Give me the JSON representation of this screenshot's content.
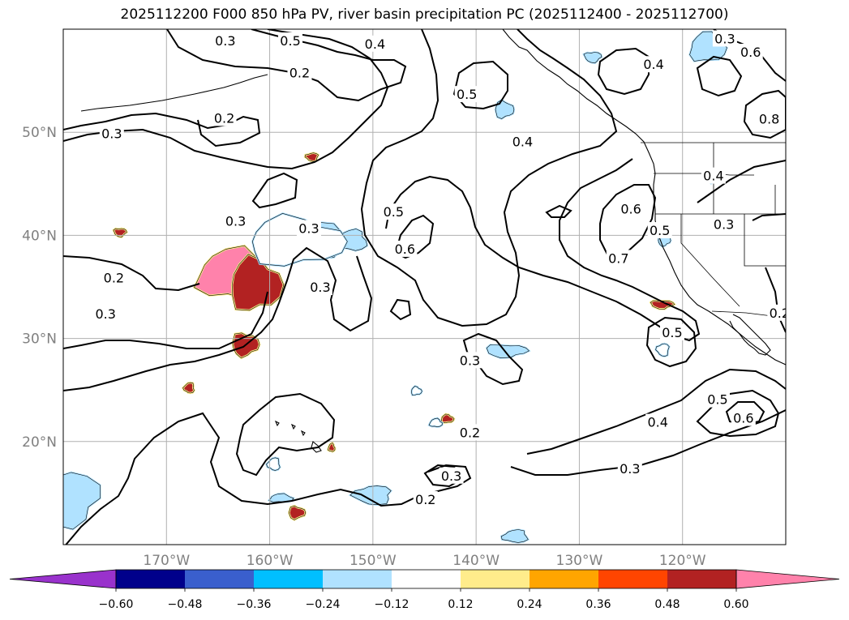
{
  "title": "2025112200 F000 850 hPa PV, river basin precipitation PC (2025112400 - 2025112700)",
  "chart_data": {
    "type": "heatmap",
    "map_extent": {
      "lon": [
        -180,
        -110
      ],
      "lat": [
        10,
        60
      ]
    },
    "x_ticks": [
      {
        "lon": -170,
        "label": "170°W"
      },
      {
        "lon": -160,
        "label": "160°W"
      },
      {
        "lon": -150,
        "label": "150°W"
      },
      {
        "lon": -140,
        "label": "140°W"
      },
      {
        "lon": -130,
        "label": "130°W"
      },
      {
        "lon": -120,
        "label": "120°W"
      }
    ],
    "y_ticks": [
      {
        "lat": 20,
        "label": "20°N"
      },
      {
        "lat": 30,
        "label": "30°N"
      },
      {
        "lat": 40,
        "label": "40°N"
      },
      {
        "lat": 50,
        "label": "50°N"
      }
    ],
    "grid": true,
    "colorbar": {
      "levels": [
        -0.72,
        -0.6,
        -0.48,
        -0.36,
        -0.24,
        -0.12,
        0.12,
        0.24,
        0.36,
        0.48,
        0.6,
        0.72
      ],
      "tick_labels": [
        "−0.60",
        "−0.48",
        "−0.36",
        "−0.24",
        "−0.12",
        "0.12",
        "0.24",
        "0.36",
        "0.48",
        "0.60"
      ],
      "colors": [
        "#9932cc",
        "#00008b",
        "#3a5fcd",
        "#00bfff",
        "#b0e2ff",
        "#ffffff",
        "#ffec8b",
        "#ffa500",
        "#ff4500",
        "#b22222",
        "#ff82ab"
      ],
      "extend": "both"
    },
    "pv_contour_labels": [
      {
        "value": "0.2",
        "lon": -164.4,
        "lat": 51.4
      },
      {
        "value": "0.3",
        "lon": -175.3,
        "lat": 49.9
      },
      {
        "value": "0.5",
        "lon": -158.0,
        "lat": 58.9
      },
      {
        "value": "0.4",
        "lon": -149.8,
        "lat": 58.6
      },
      {
        "value": "0.2",
        "lon": -157.1,
        "lat": 55.8
      },
      {
        "value": "0.5",
        "lon": -140.9,
        "lat": 53.7
      },
      {
        "value": "0.4",
        "lon": -135.5,
        "lat": 49.1
      },
      {
        "value": "0.3",
        "lon": -164.3,
        "lat": 58.9
      },
      {
        "value": "0.3",
        "lon": -163.3,
        "lat": 41.4
      },
      {
        "value": "0.5",
        "lon": -148.0,
        "lat": 42.3
      },
      {
        "value": "0.6",
        "lon": -146.9,
        "lat": 38.7
      },
      {
        "value": "0.6",
        "lon": -125.0,
        "lat": 42.6
      },
      {
        "value": "0.7",
        "lon": -126.2,
        "lat": 37.8
      },
      {
        "value": "0.5",
        "lon": -122.2,
        "lat": 40.5
      },
      {
        "value": "0.4",
        "lon": -117.0,
        "lat": 45.8
      },
      {
        "value": "0.3",
        "lon": -116.0,
        "lat": 41.1
      },
      {
        "value": "0.4",
        "lon": -122.8,
        "lat": 56.6
      },
      {
        "value": "0.3",
        "lon": -115.9,
        "lat": 59.1
      },
      {
        "value": "0.3",
        "lon": -156.2,
        "lat": 40.7
      },
      {
        "value": "0.3",
        "lon": -155.1,
        "lat": 35.0
      },
      {
        "value": "0.2",
        "lon": -175.1,
        "lat": 35.9
      },
      {
        "value": "0.3",
        "lon": -175.9,
        "lat": 32.4
      },
      {
        "value": "0.5",
        "lon": -121.0,
        "lat": 30.6
      },
      {
        "value": "0.3",
        "lon": -140.6,
        "lat": 27.9
      },
      {
        "value": "0.2",
        "lon": -140.6,
        "lat": 20.9
      },
      {
        "value": "0.3",
        "lon": -142.4,
        "lat": 16.7
      },
      {
        "value": "0.2",
        "lon": -144.9,
        "lat": 14.4
      },
      {
        "value": "0.4",
        "lon": -122.4,
        "lat": 21.9
      },
      {
        "value": "0.3",
        "lon": -125.1,
        "lat": 17.4
      },
      {
        "value": "0.5",
        "lon": -116.6,
        "lat": 24.1
      },
      {
        "value": "0.6",
        "lon": -114.1,
        "lat": 22.3
      },
      {
        "value": "0.2",
        "lon": -110.6,
        "lat": 32.5
      },
      {
        "value": "0.8",
        "lon": -111.6,
        "lat": 51.3
      },
      {
        "value": "0.6",
        "lon": -113.4,
        "lat": 57.8
      }
    ],
    "precip_pc_patches": [
      {
        "level": 0.48,
        "lon": -163.4,
        "lat": 36.2,
        "rlon": 3.6,
        "rlat": 2.4
      },
      {
        "level": 0.36,
        "lon": -161.4,
        "lat": 35.2,
        "rlon": 2.5,
        "rlat": 2.5
      },
      {
        "level": 0.36,
        "lon": -162.4,
        "lat": 29.4,
        "rlon": 1.3,
        "rlat": 1.1
      },
      {
        "level": 0.36,
        "lon": -174.5,
        "lat": 40.3,
        "rlon": 0.6,
        "rlat": 0.4
      },
      {
        "level": 0.36,
        "lon": -155.9,
        "lat": 47.6,
        "rlon": 0.6,
        "rlat": 0.4
      },
      {
        "level": 0.36,
        "lon": -167.8,
        "lat": 25.2,
        "rlon": 0.5,
        "rlat": 0.5
      },
      {
        "level": 0.36,
        "lon": -154.0,
        "lat": 19.4,
        "rlon": 0.3,
        "rlat": 0.4
      },
      {
        "level": 0.36,
        "lon": -142.8,
        "lat": 22.2,
        "rlon": 0.6,
        "rlat": 0.4
      },
      {
        "level": 0.36,
        "lon": -157.4,
        "lat": 13.1,
        "rlon": 0.8,
        "rlat": 0.6
      },
      {
        "level": 0.36,
        "lon": -122.0,
        "lat": 33.3,
        "rlon": 1.1,
        "rlat": 0.4
      },
      {
        "level": -0.48,
        "lon": -157.4,
        "lat": 39.9,
        "rlon": 2.8,
        "rlat": 1.2
      },
      {
        "level": -0.36,
        "lon": -156.6,
        "lat": 39.5,
        "rlon": 3.9,
        "rlat": 1.8
      },
      {
        "level": -0.36,
        "lon": -152.0,
        "lat": 39.5,
        "rlon": 1.4,
        "rlat": 1.0
      },
      {
        "level": -0.36,
        "lon": -117.6,
        "lat": 58.2,
        "rlon": 1.7,
        "rlat": 1.4
      },
      {
        "level": -0.36,
        "lon": -137.3,
        "lat": 52.2,
        "rlon": 0.9,
        "rlat": 0.8
      },
      {
        "level": -0.36,
        "lon": -137.1,
        "lat": 28.8,
        "rlon": 2.0,
        "rlat": 0.6
      },
      {
        "level": -0.36,
        "lon": -180.0,
        "lat": 14.5,
        "rlon": 3.5,
        "rlat": 2.6
      },
      {
        "level": -0.36,
        "lon": -150.0,
        "lat": 14.8,
        "rlon": 1.8,
        "rlat": 0.9
      },
      {
        "level": -0.36,
        "lon": -136.2,
        "lat": 10.8,
        "rlon": 1.2,
        "rlat": 0.6
      },
      {
        "level": -0.36,
        "lon": -158.9,
        "lat": 14.5,
        "rlon": 1.1,
        "rlat": 0.4
      },
      {
        "level": -0.24,
        "lon": -157.5,
        "lat": 39.4,
        "rlon": 4.6,
        "rlat": 2.3
      },
      {
        "level": -0.36,
        "lon": -121.8,
        "lat": 39.5,
        "rlon": 0.6,
        "rlat": 0.5
      },
      {
        "level": -0.36,
        "lon": -128.7,
        "lat": 57.3,
        "rlon": 0.8,
        "rlat": 0.5
      },
      {
        "level": -0.24,
        "lon": -121.9,
        "lat": 28.9,
        "rlon": 0.6,
        "rlat": 0.6
      },
      {
        "level": -0.24,
        "lon": -159.6,
        "lat": 17.8,
        "rlon": 0.6,
        "rlat": 0.6
      },
      {
        "level": -0.24,
        "lon": -143.9,
        "lat": 21.8,
        "rlon": 0.6,
        "rlat": 0.4
      },
      {
        "level": -0.24,
        "lon": -145.8,
        "lat": 24.9,
        "rlon": 0.5,
        "rlat": 0.4
      },
      {
        "level": -0.24,
        "lon": -117.1,
        "lat": 45.5,
        "rlon": 0.5,
        "rlat": 0.4
      }
    ]
  }
}
